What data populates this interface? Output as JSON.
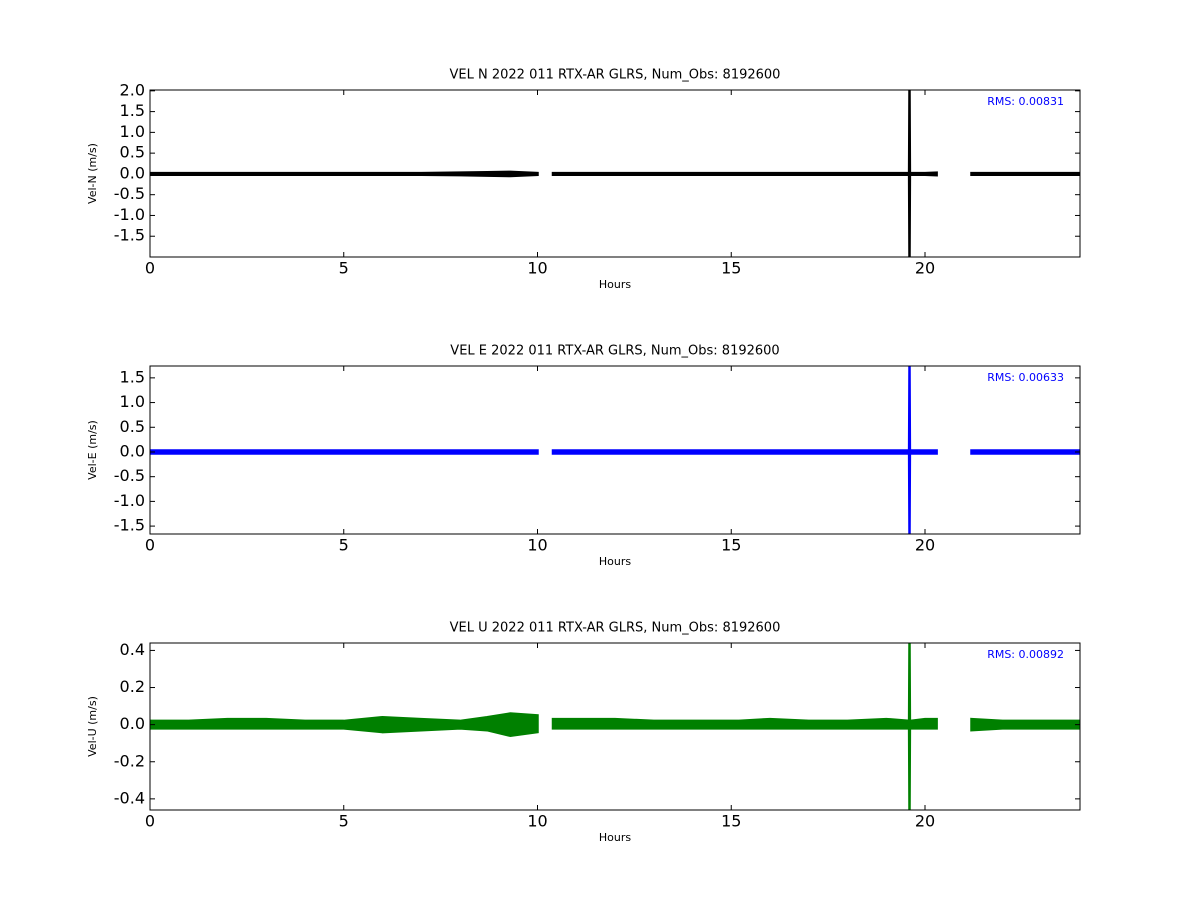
{
  "chart_data": [
    {
      "type": "band",
      "title": "VEL N 2022 011 RTX-AR  GLRS, Num_Obs: 8192600",
      "xlabel": "Hours",
      "ylabel": "Vel-N (m/s)",
      "annotation": "RMS:  0.00831",
      "annotation_color": "#0000ff",
      "x": [
        0,
        1,
        2,
        3,
        4,
        5,
        6,
        7,
        8,
        8.7,
        9.3,
        10,
        10.3,
        10.4,
        11,
        12,
        13,
        14,
        15,
        15.2,
        16,
        17,
        18,
        19,
        19.59,
        19.6,
        19.61,
        20,
        20.3,
        20.95,
        21.2,
        22,
        23,
        24
      ],
      "series": [
        {
          "color": "#000000",
          "upper": [
            0.02,
            0.02,
            0.02,
            0.02,
            0.02,
            0.02,
            0.02,
            0.02,
            0.03,
            0.04,
            0.05,
            0.02,
            null,
            0.02,
            0.02,
            0.02,
            0.02,
            0.02,
            0.02,
            0.02,
            0.02,
            0.02,
            0.02,
            0.02,
            0.02,
            2.02,
            0.02,
            0.02,
            0.03,
            null,
            0.02,
            0.02,
            0.02,
            0.02
          ],
          "lower": [
            -0.02,
            -0.02,
            -0.02,
            -0.02,
            -0.02,
            -0.02,
            -0.02,
            -0.02,
            -0.03,
            -0.04,
            -0.05,
            -0.02,
            null,
            -0.02,
            -0.02,
            -0.02,
            -0.02,
            -0.02,
            -0.02,
            -0.02,
            -0.02,
            -0.02,
            -0.02,
            -0.02,
            -0.02,
            -2.0,
            -0.02,
            -0.02,
            -0.03,
            null,
            -0.02,
            -0.02,
            -0.02,
            -0.02
          ]
        }
      ],
      "xlim": [
        0,
        24
      ],
      "xticks": [
        0,
        5,
        10,
        15,
        20
      ],
      "ylim": [
        -2.0,
        2.02
      ],
      "yticks": [
        {
          "value": -1.5,
          "label": "-1.5"
        },
        {
          "value": -1.0,
          "label": "-1.0"
        },
        {
          "value": -0.5,
          "label": "-0.5"
        },
        {
          "value": 0,
          "label": "0.0"
        },
        {
          "value": 0.5,
          "label": "0.5"
        },
        {
          "value": 1.0,
          "label": "1.0"
        },
        {
          "value": 1.5,
          "label": "1.5"
        },
        {
          "value": 2.0,
          "label": "2.0"
        }
      ]
    },
    {
      "type": "band",
      "title": "VEL E 2022 011 RTX-AR  GLRS, Num_Obs: 8192600",
      "xlabel": "Hours",
      "ylabel": "Vel-E (m/s)",
      "annotation": "RMS:  0.00633",
      "annotation_color": "#0000ff",
      "x": [
        0,
        1,
        2,
        3,
        4,
        5,
        6,
        7,
        8,
        8.7,
        9.3,
        10,
        10.3,
        10.4,
        11,
        12,
        13,
        14,
        15,
        15.2,
        16,
        17,
        18,
        19,
        19.59,
        19.6,
        19.61,
        20,
        20.3,
        20.95,
        21.2,
        22,
        23,
        24
      ],
      "series": [
        {
          "color": "#0000ff",
          "upper": [
            0.03,
            0.03,
            0.03,
            0.03,
            0.03,
            0.03,
            0.03,
            0.03,
            0.03,
            0.03,
            0.03,
            0.03,
            null,
            0.03,
            0.03,
            0.03,
            0.03,
            0.03,
            0.03,
            0.03,
            0.03,
            0.03,
            0.03,
            0.03,
            0.03,
            1.74,
            0.03,
            0.03,
            0.03,
            null,
            0.03,
            0.03,
            0.03,
            0.03
          ],
          "lower": [
            -0.03,
            -0.03,
            -0.03,
            -0.03,
            -0.03,
            -0.03,
            -0.03,
            -0.03,
            -0.03,
            -0.03,
            -0.03,
            -0.03,
            null,
            -0.03,
            -0.03,
            -0.03,
            -0.03,
            -0.03,
            -0.03,
            -0.03,
            -0.03,
            -0.03,
            -0.03,
            -0.03,
            -0.03,
            -1.66,
            -0.03,
            -0.03,
            -0.03,
            null,
            -0.03,
            -0.03,
            -0.03,
            -0.03
          ]
        }
      ],
      "xlim": [
        0,
        24
      ],
      "xticks": [
        0,
        5,
        10,
        15,
        20
      ],
      "ylim": [
        -1.66,
        1.74
      ],
      "yticks": [
        {
          "value": -1.5,
          "label": "-1.5"
        },
        {
          "value": -1.0,
          "label": "-1.0"
        },
        {
          "value": -0.5,
          "label": "-0.5"
        },
        {
          "value": 0,
          "label": "0.0"
        },
        {
          "value": 0.5,
          "label": "0.5"
        },
        {
          "value": 1.0,
          "label": "1.0"
        },
        {
          "value": 1.5,
          "label": "1.5"
        }
      ]
    },
    {
      "type": "band",
      "title": "VEL U 2022 011 RTX-AR  GLRS, Num_Obs: 8192600",
      "xlabel": "Hours",
      "ylabel": "Vel-U (m/s)",
      "annotation": "RMS:  0.00892",
      "annotation_color": "#0000ff",
      "x": [
        0,
        1,
        2,
        3,
        4,
        5,
        6,
        7,
        8,
        8.7,
        9.3,
        10,
        10.3,
        10.4,
        11,
        12,
        13,
        14,
        15,
        15.2,
        16,
        17,
        18,
        19,
        19.59,
        19.6,
        19.61,
        20,
        20.3,
        20.95,
        21.2,
        22,
        23,
        24
      ],
      "series": [
        {
          "color": "#008000",
          "upper": [
            0.02,
            0.02,
            0.03,
            0.03,
            0.02,
            0.02,
            0.04,
            0.03,
            0.02,
            0.04,
            0.06,
            0.05,
            null,
            0.03,
            0.03,
            0.03,
            0.02,
            0.02,
            0.02,
            0.02,
            0.03,
            0.02,
            0.02,
            0.03,
            0.02,
            0.44,
            0.02,
            0.03,
            0.03,
            null,
            0.03,
            0.02,
            0.02,
            0.02
          ],
          "lower": [
            -0.02,
            -0.02,
            -0.02,
            -0.02,
            -0.02,
            -0.02,
            -0.04,
            -0.03,
            -0.02,
            -0.03,
            -0.06,
            -0.04,
            null,
            -0.02,
            -0.02,
            -0.02,
            -0.02,
            -0.02,
            -0.02,
            -0.02,
            -0.02,
            -0.02,
            -0.02,
            -0.02,
            -0.02,
            -0.46,
            -0.02,
            -0.02,
            -0.02,
            null,
            -0.03,
            -0.02,
            -0.02,
            -0.02
          ]
        }
      ],
      "xlim": [
        0,
        24
      ],
      "xticks": [
        0,
        5,
        10,
        15,
        20
      ],
      "ylim": [
        -0.46,
        0.44
      ],
      "yticks": [
        {
          "value": -0.4,
          "label": "-0.4"
        },
        {
          "value": -0.2,
          "label": "-0.2"
        },
        {
          "value": 0,
          "label": "0.0"
        },
        {
          "value": 0.2,
          "label": "0.2"
        },
        {
          "value": 0.4,
          "label": "0.4"
        }
      ]
    }
  ]
}
